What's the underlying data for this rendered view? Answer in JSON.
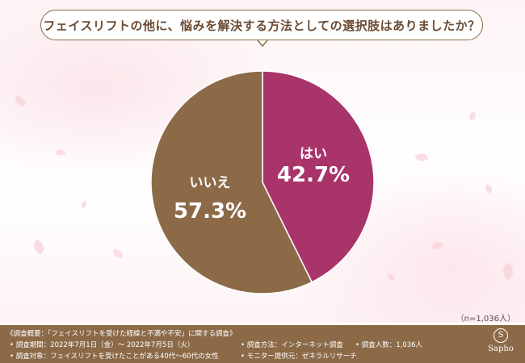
{
  "title": "フェイスリフトの他に、悩みを解決する方法としての選択肢はありましたか？",
  "chart_data": {
    "type": "pie",
    "start": "12 o'clock, clockwise",
    "slices": [
      {
        "label": "はい",
        "value": 42.7,
        "value_label": "42.7%",
        "color": "#a8346a"
      },
      {
        "label": "いいえ",
        "value": 57.3,
        "value_label": "57.3%",
        "color": "#8c6a48"
      }
    ]
  },
  "sample_note": "（n=1,036人）",
  "footer": {
    "survey_overview": "《調査概要：「フェイスリフトを受けた経緯と不満や不安」に関する調査》",
    "survey_period": "• 調査期間：2022年7月1日（金）～ 2022年7月5日（火）",
    "survey_method": "• 調査方法：インターネット調査",
    "respondents": "• 調査人数：1,036人",
    "survey_target": "• 調査対象：フェイスリフトを受けたことがある40代～60代の女性",
    "monitor_provider": "• モニター提供元：ゼネラルリサーチ"
  },
  "logo": {
    "mark": "S",
    "name": "Sapho"
  }
}
